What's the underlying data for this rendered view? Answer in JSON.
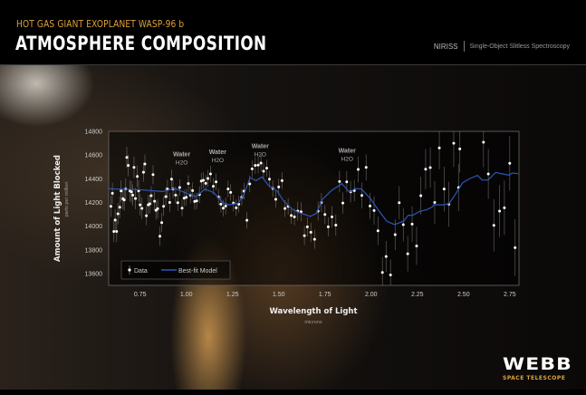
{
  "header": {
    "kicker": "HOT GAS GIANT EXOPLANET WASP-96 b",
    "title": "ATMOSPHERE COMPOSITION",
    "instrument": "NIRISS",
    "mode": "Single-Object Slitless Spectroscopy"
  },
  "logo": {
    "name": "WEBB",
    "subtitle": "SPACE TELESCOPE"
  },
  "colors": {
    "accent": "#e0a33a",
    "model": "#2a56b8",
    "data": "#ffffff"
  },
  "chart_data": {
    "type": "scatter",
    "xlabel": "Wavelength of Light",
    "xunit": "microns",
    "ylabel": "Amount of Light Blocked",
    "yunit": "parts per million",
    "xlim": [
      0.58,
      2.8
    ],
    "ylim": [
      13500,
      14800
    ],
    "xticks": [
      0.75,
      1.0,
      1.25,
      1.5,
      1.75,
      2.0,
      2.25,
      2.5,
      2.75
    ],
    "xtick_labels": [
      "0.75",
      "1.00",
      "1.25",
      "1.50",
      "1.75",
      "2.00",
      "2.25",
      "2.50",
      "2.75"
    ],
    "yticks": [
      13600,
      13800,
      14000,
      14200,
      14400,
      14600,
      14800
    ],
    "ytick_labels": [
      "13600",
      "13800",
      "14000",
      "14200",
      "14400",
      "14600",
      "14800"
    ],
    "legend": {
      "position": "bottom-left",
      "entries": [
        "Data",
        "Best-fit Model"
      ]
    },
    "annotations": [
      {
        "x": 0.975,
        "y": 14590,
        "label": "Water",
        "formula": "H2O"
      },
      {
        "x": 1.17,
        "y": 14610,
        "label": "Water",
        "formula": "H2O"
      },
      {
        "x": 1.4,
        "y": 14660,
        "label": "Water",
        "formula": "H2O"
      },
      {
        "x": 1.87,
        "y": 14620,
        "label": "Water",
        "formula": "H2O"
      }
    ],
    "series": [
      {
        "name": "Data",
        "type": "errorbar",
        "points": [
          [
            0.592,
            14167,
            90
          ],
          [
            0.6,
            14277,
            90
          ],
          [
            0.608,
            13955,
            90
          ],
          [
            0.615,
            14052,
            90
          ],
          [
            0.623,
            13955,
            90
          ],
          [
            0.63,
            14104,
            90
          ],
          [
            0.64,
            14160,
            90
          ],
          [
            0.647,
            14297,
            90
          ],
          [
            0.657,
            14231,
            90
          ],
          [
            0.664,
            14221,
            90
          ],
          [
            0.672,
            14313,
            90
          ],
          [
            0.678,
            14580,
            90
          ],
          [
            0.686,
            14512,
            90
          ],
          [
            0.695,
            14297,
            90
          ],
          [
            0.703,
            14290,
            90
          ],
          [
            0.71,
            14262,
            90
          ],
          [
            0.717,
            14496,
            90
          ],
          [
            0.725,
            14233,
            90
          ],
          [
            0.735,
            14420,
            90
          ],
          [
            0.742,
            14297,
            90
          ],
          [
            0.75,
            14180,
            90
          ],
          [
            0.76,
            14150,
            90
          ],
          [
            0.768,
            14455,
            80
          ],
          [
            0.776,
            14525,
            80
          ],
          [
            0.784,
            14088,
            80
          ],
          [
            0.794,
            14180,
            80
          ],
          [
            0.802,
            14188,
            80
          ],
          [
            0.81,
            14257,
            80
          ],
          [
            0.82,
            14435,
            80
          ],
          [
            0.828,
            14210,
            80
          ],
          [
            0.836,
            14134,
            80
          ],
          [
            0.845,
            14147,
            80
          ],
          [
            0.857,
            13915,
            80
          ],
          [
            0.867,
            14030,
            80
          ],
          [
            0.877,
            14167,
            80
          ],
          [
            0.889,
            14249,
            80
          ],
          [
            0.898,
            14313,
            80
          ],
          [
            0.91,
            14200,
            80
          ],
          [
            0.92,
            14397,
            80
          ],
          [
            0.928,
            14313,
            80
          ],
          [
            0.942,
            14262,
            70
          ],
          [
            0.954,
            14198,
            70
          ],
          [
            0.964,
            14326,
            70
          ],
          [
            0.977,
            14152,
            70
          ],
          [
            0.988,
            14236,
            70
          ],
          [
            1.0,
            14244,
            70
          ],
          [
            1.011,
            14359,
            70
          ],
          [
            1.022,
            14262,
            70
          ],
          [
            1.034,
            14300,
            70
          ],
          [
            1.045,
            14208,
            70
          ],
          [
            1.056,
            14213,
            70
          ],
          [
            1.071,
            14267,
            70
          ],
          [
            1.081,
            14380,
            70
          ],
          [
            1.092,
            14387,
            70
          ],
          [
            1.105,
            14361,
            70
          ],
          [
            1.117,
            14402,
            70
          ],
          [
            1.131,
            14441,
            70
          ],
          [
            1.146,
            14336,
            70
          ],
          [
            1.161,
            14374,
            70
          ],
          [
            1.174,
            14246,
            70
          ],
          [
            1.187,
            14185,
            70
          ],
          [
            1.2,
            14152,
            70
          ],
          [
            1.213,
            14170,
            70
          ],
          [
            1.226,
            14313,
            70
          ],
          [
            1.24,
            14285,
            70
          ],
          [
            1.255,
            14195,
            70
          ],
          [
            1.27,
            14155,
            70
          ],
          [
            1.284,
            14185,
            70
          ],
          [
            1.3,
            14244,
            70
          ],
          [
            1.312,
            14295,
            70
          ],
          [
            1.328,
            14050,
            70
          ],
          [
            1.343,
            14356,
            70
          ],
          [
            1.356,
            14484,
            70
          ],
          [
            1.373,
            14512,
            70
          ],
          [
            1.389,
            14515,
            70
          ],
          [
            1.404,
            14532,
            70
          ],
          [
            1.418,
            14464,
            70
          ],
          [
            1.435,
            14489,
            70
          ],
          [
            1.45,
            14397,
            70
          ],
          [
            1.468,
            14318,
            70
          ],
          [
            1.484,
            14226,
            70
          ],
          [
            1.5,
            14331,
            70
          ],
          [
            1.518,
            14384,
            70
          ],
          [
            1.534,
            14149,
            70
          ],
          [
            1.551,
            14167,
            70
          ],
          [
            1.568,
            14090,
            70
          ],
          [
            1.585,
            14078,
            70
          ],
          [
            1.603,
            14127,
            80
          ],
          [
            1.621,
            14121,
            80
          ],
          [
            1.639,
            13920,
            80
          ],
          [
            1.655,
            13994,
            80
          ],
          [
            1.674,
            13948,
            80
          ],
          [
            1.694,
            13889,
            80
          ],
          [
            1.713,
            14127,
            80
          ],
          [
            1.731,
            14200,
            80
          ],
          [
            1.75,
            14098,
            80
          ],
          [
            1.768,
            13994,
            80
          ],
          [
            1.788,
            14078,
            90
          ],
          [
            1.809,
            14009,
            90
          ],
          [
            1.829,
            14377,
            90
          ],
          [
            1.847,
            14195,
            90
          ],
          [
            1.868,
            14374,
            90
          ],
          [
            1.889,
            14290,
            90
          ],
          [
            1.909,
            14300,
            90
          ],
          [
            1.93,
            14479,
            110
          ],
          [
            1.95,
            14259,
            110
          ],
          [
            1.973,
            14496,
            110
          ],
          [
            1.994,
            14170,
            110
          ],
          [
            2.016,
            14132,
            120
          ],
          [
            2.037,
            13961,
            120
          ],
          [
            2.061,
            13609,
            130
          ],
          [
            2.081,
            13744,
            130
          ],
          [
            2.105,
            13588,
            130
          ],
          [
            2.13,
            13928,
            130
          ],
          [
            2.152,
            14198,
            140
          ],
          [
            2.174,
            14012,
            140
          ],
          [
            2.198,
            13767,
            150
          ],
          [
            2.222,
            14017,
            150
          ],
          [
            2.246,
            13833,
            160
          ],
          [
            2.269,
            14257,
            160
          ],
          [
            2.295,
            14481,
            170
          ],
          [
            2.32,
            14494,
            170
          ],
          [
            2.344,
            14200,
            180
          ],
          [
            2.369,
            14660,
            180
          ],
          [
            2.395,
            14313,
            190
          ],
          [
            2.421,
            14185,
            190
          ],
          [
            2.447,
            14700,
            200
          ],
          [
            2.473,
            14326,
            200
          ],
          [
            2.48,
            14652,
            200
          ],
          [
            2.608,
            14708,
            210
          ],
          [
            2.634,
            14441,
            210
          ],
          [
            2.664,
            14007,
            220
          ],
          [
            2.695,
            14127,
            220
          ],
          [
            2.721,
            14155,
            230
          ],
          [
            2.75,
            14530,
            230
          ],
          [
            2.779,
            13818,
            240
          ]
        ]
      },
      {
        "name": "Best-fit Model",
        "type": "line",
        "points": [
          [
            0.579,
            14315
          ],
          [
            0.742,
            14308
          ],
          [
            0.807,
            14300
          ],
          [
            0.872,
            14292
          ],
          [
            0.937,
            14318
          ],
          [
            1.003,
            14277
          ],
          [
            1.052,
            14249
          ],
          [
            1.101,
            14313
          ],
          [
            1.149,
            14282
          ],
          [
            1.198,
            14198
          ],
          [
            1.231,
            14180
          ],
          [
            1.28,
            14193
          ],
          [
            1.312,
            14270
          ],
          [
            1.345,
            14410
          ],
          [
            1.377,
            14385
          ],
          [
            1.41,
            14415
          ],
          [
            1.443,
            14346
          ],
          [
            1.492,
            14295
          ],
          [
            1.524,
            14219
          ],
          [
            1.573,
            14142
          ],
          [
            1.606,
            14117
          ],
          [
            1.671,
            14083
          ],
          [
            1.704,
            14109
          ],
          [
            1.736,
            14226
          ],
          [
            1.785,
            14300
          ],
          [
            1.842,
            14359
          ],
          [
            1.883,
            14287
          ],
          [
            1.915,
            14318
          ],
          [
            1.948,
            14313
          ],
          [
            1.997,
            14231
          ],
          [
            2.046,
            14121
          ],
          [
            2.086,
            14040
          ],
          [
            2.127,
            14014
          ],
          [
            2.176,
            14042
          ],
          [
            2.201,
            14093
          ],
          [
            2.225,
            14091
          ],
          [
            2.258,
            14121
          ],
          [
            2.307,
            14142
          ],
          [
            2.331,
            14162
          ],
          [
            2.339,
            14180
          ],
          [
            2.388,
            14180
          ],
          [
            2.421,
            14188
          ],
          [
            2.454,
            14264
          ],
          [
            2.495,
            14366
          ],
          [
            2.535,
            14402
          ],
          [
            2.576,
            14428
          ],
          [
            2.6,
            14389
          ],
          [
            2.633,
            14389
          ],
          [
            2.674,
            14453
          ],
          [
            2.714,
            14440
          ],
          [
            2.747,
            14430
          ],
          [
            2.763,
            14448
          ],
          [
            2.796,
            14443
          ]
        ]
      }
    ]
  }
}
